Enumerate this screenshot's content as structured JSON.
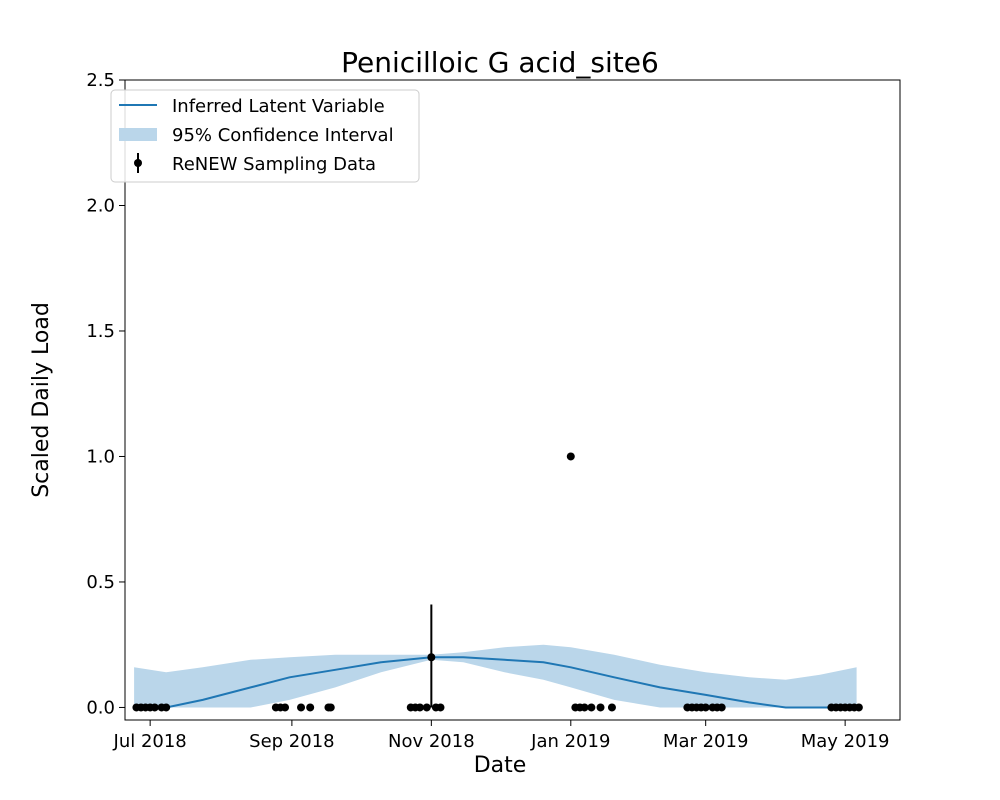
{
  "chart_data": {
    "type": "line",
    "title": "Penicilloic G acid_site6",
    "xlabel": "Date",
    "ylabel": "Scaled Daily Load",
    "xlim": [
      "2018-06-20",
      "2019-05-25"
    ],
    "ylim": [
      -0.05,
      2.5
    ],
    "x_ticks": [
      {
        "date": "2018-07-01",
        "label": "Jul 2018"
      },
      {
        "date": "2018-09-01",
        "label": "Sep 2018"
      },
      {
        "date": "2018-11-01",
        "label": "Nov 2018"
      },
      {
        "date": "2019-01-01",
        "label": "Jan 2019"
      },
      {
        "date": "2019-03-01",
        "label": "Mar 2019"
      },
      {
        "date": "2019-05-01",
        "label": "May 2019"
      }
    ],
    "y_ticks": [
      {
        "value": 0.0,
        "label": "0.0"
      },
      {
        "value": 0.5,
        "label": "0.5"
      },
      {
        "value": 1.0,
        "label": "1.0"
      },
      {
        "value": 1.5,
        "label": "1.5"
      },
      {
        "value": 2.0,
        "label": "2.0"
      },
      {
        "value": 2.5,
        "label": "2.5"
      }
    ],
    "legend": {
      "placement": "upper-left",
      "entries": [
        {
          "key": "latent",
          "label": "Inferred Latent Variable"
        },
        {
          "key": "ci",
          "label": "95% Confidence Interval"
        },
        {
          "key": "samples",
          "label": "ReNEW Sampling Data"
        }
      ]
    },
    "colors": {
      "latent": "#1f77b4",
      "ci": "#bad6ea",
      "samples": "#000000"
    },
    "series": [
      {
        "key": "latent",
        "points": [
          {
            "date": "2018-06-24",
            "mean": 0.0,
            "lower": 0.0,
            "upper": 0.16
          },
          {
            "date": "2018-07-08",
            "mean": 0.0,
            "lower": 0.0,
            "upper": 0.14
          },
          {
            "date": "2018-07-24",
            "mean": 0.03,
            "lower": 0.0,
            "upper": 0.16
          },
          {
            "date": "2018-08-14",
            "mean": 0.08,
            "lower": 0.0,
            "upper": 0.19
          },
          {
            "date": "2018-08-31",
            "mean": 0.12,
            "lower": 0.03,
            "upper": 0.2
          },
          {
            "date": "2018-09-20",
            "mean": 0.15,
            "lower": 0.08,
            "upper": 0.21
          },
          {
            "date": "2018-10-10",
            "mean": 0.18,
            "lower": 0.14,
            "upper": 0.21
          },
          {
            "date": "2018-11-01",
            "mean": 0.2,
            "lower": 0.19,
            "upper": 0.21
          },
          {
            "date": "2018-11-15",
            "mean": 0.2,
            "lower": 0.18,
            "upper": 0.22
          },
          {
            "date": "2018-12-03",
            "mean": 0.19,
            "lower": 0.14,
            "upper": 0.24
          },
          {
            "date": "2018-12-20",
            "mean": 0.18,
            "lower": 0.11,
            "upper": 0.25
          },
          {
            "date": "2019-01-01",
            "mean": 0.16,
            "lower": 0.08,
            "upper": 0.24
          },
          {
            "date": "2019-01-20",
            "mean": 0.12,
            "lower": 0.03,
            "upper": 0.21
          },
          {
            "date": "2019-02-09",
            "mean": 0.08,
            "lower": 0.0,
            "upper": 0.17
          },
          {
            "date": "2019-03-01",
            "mean": 0.05,
            "lower": 0.0,
            "upper": 0.14
          },
          {
            "date": "2019-03-20",
            "mean": 0.02,
            "lower": 0.0,
            "upper": 0.12
          },
          {
            "date": "2019-04-05",
            "mean": 0.0,
            "lower": 0.0,
            "upper": 0.11
          },
          {
            "date": "2019-04-20",
            "mean": 0.0,
            "lower": 0.0,
            "upper": 0.13
          },
          {
            "date": "2019-05-06",
            "mean": 0.0,
            "lower": 0.0,
            "upper": 0.16
          }
        ]
      }
    ],
    "samples": [
      {
        "date": "2018-06-25",
        "value": 0
      },
      {
        "date": "2018-06-27",
        "value": 0
      },
      {
        "date": "2018-06-29",
        "value": 0
      },
      {
        "date": "2018-07-01",
        "value": 0
      },
      {
        "date": "2018-07-03",
        "value": 0
      },
      {
        "date": "2018-07-06",
        "value": 0
      },
      {
        "date": "2018-07-08",
        "value": 0
      },
      {
        "date": "2018-08-25",
        "value": 0
      },
      {
        "date": "2018-08-27",
        "value": 0
      },
      {
        "date": "2018-08-29",
        "value": 0
      },
      {
        "date": "2018-09-05",
        "value": 0
      },
      {
        "date": "2018-09-09",
        "value": 0
      },
      {
        "date": "2018-09-17",
        "value": 0
      },
      {
        "date": "2018-09-18",
        "value": 0
      },
      {
        "date": "2018-10-23",
        "value": 0
      },
      {
        "date": "2018-10-25",
        "value": 0
      },
      {
        "date": "2018-10-27",
        "value": 0
      },
      {
        "date": "2018-10-30",
        "value": 0
      },
      {
        "date": "2018-11-01",
        "value": 0.2,
        "err_low": 0.0,
        "err_high": 0.41
      },
      {
        "date": "2018-11-03",
        "value": 0
      },
      {
        "date": "2018-11-05",
        "value": 0
      },
      {
        "date": "2019-01-01",
        "value": 1.0
      },
      {
        "date": "2019-01-03",
        "value": 0
      },
      {
        "date": "2019-01-05",
        "value": 0
      },
      {
        "date": "2019-01-07",
        "value": 0
      },
      {
        "date": "2019-01-10",
        "value": 0
      },
      {
        "date": "2019-01-14",
        "value": 0
      },
      {
        "date": "2019-01-19",
        "value": 0
      },
      {
        "date": "2019-02-21",
        "value": 0
      },
      {
        "date": "2019-02-23",
        "value": 0
      },
      {
        "date": "2019-02-25",
        "value": 0
      },
      {
        "date": "2019-02-27",
        "value": 0
      },
      {
        "date": "2019-03-01",
        "value": 0
      },
      {
        "date": "2019-03-04",
        "value": 0
      },
      {
        "date": "2019-03-06",
        "value": 0
      },
      {
        "date": "2019-03-08",
        "value": 0
      },
      {
        "date": "2019-04-25",
        "value": 0
      },
      {
        "date": "2019-04-27",
        "value": 0
      },
      {
        "date": "2019-04-29",
        "value": 0
      },
      {
        "date": "2019-05-01",
        "value": 0
      },
      {
        "date": "2019-05-03",
        "value": 0
      },
      {
        "date": "2019-05-05",
        "value": 0
      },
      {
        "date": "2019-05-07",
        "value": 0
      }
    ]
  }
}
